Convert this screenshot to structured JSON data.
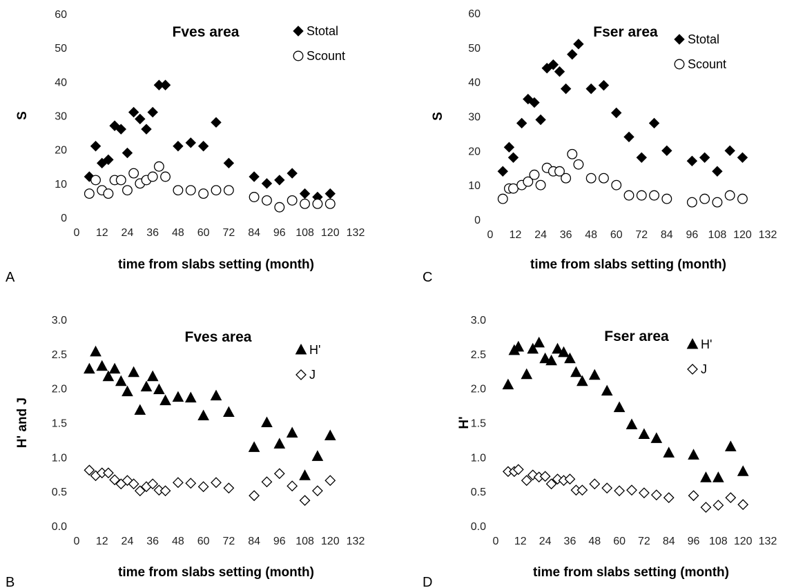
{
  "chart_data": [
    {
      "panel": "A",
      "type": "scatter",
      "title": "Fves area",
      "xlabel": "time from slabs setting (month)",
      "ylabel": "S",
      "xlim": [
        0,
        132
      ],
      "xticks": [
        0,
        12,
        24,
        36,
        48,
        60,
        72,
        84,
        96,
        108,
        120,
        132
      ],
      "ylim": [
        0,
        60
      ],
      "yticks": [
        0,
        10,
        20,
        30,
        40,
        50,
        60
      ],
      "ydecimals": 0,
      "legend_position": "top-right",
      "series": [
        {
          "name": "Stotal",
          "marker": "diamond-filled",
          "x": [
            6,
            9,
            12,
            15,
            18,
            21,
            24,
            27,
            30,
            33,
            36,
            39,
            42,
            48,
            54,
            60,
            66,
            72,
            84,
            90,
            96,
            102,
            108,
            114,
            120
          ],
          "y": [
            12,
            21,
            16,
            17,
            27,
            26,
            19,
            31,
            29,
            26,
            31,
            39,
            39,
            21,
            22,
            21,
            28,
            16,
            12,
            10,
            11,
            13,
            7,
            6,
            7
          ]
        },
        {
          "name": "Scount",
          "marker": "circle-open",
          "x": [
            6,
            9,
            12,
            15,
            18,
            21,
            24,
            27,
            30,
            33,
            36,
            39,
            42,
            48,
            54,
            60,
            66,
            72,
            84,
            90,
            96,
            102,
            108,
            114,
            120
          ],
          "y": [
            7,
            11,
            8,
            7,
            11,
            11,
            8,
            13,
            10,
            11,
            12,
            15,
            12,
            8,
            8,
            7,
            8,
            8,
            6,
            5,
            3,
            5,
            4,
            4,
            4
          ]
        }
      ]
    },
    {
      "panel": "C",
      "type": "scatter",
      "title": "Fser area",
      "xlabel": "time from slabs setting (month)",
      "ylabel": "S",
      "xlim": [
        0,
        132
      ],
      "xticks": [
        0,
        12,
        24,
        36,
        48,
        60,
        72,
        84,
        96,
        108,
        120,
        132
      ],
      "ylim": [
        0,
        60
      ],
      "yticks": [
        0,
        10,
        20,
        30,
        40,
        50,
        60
      ],
      "ydecimals": 0,
      "legend_position": "top-right",
      "series": [
        {
          "name": "Stotal",
          "marker": "diamond-filled",
          "x": [
            6,
            9,
            11,
            15,
            18,
            21,
            24,
            27,
            30,
            33,
            36,
            39,
            42,
            48,
            54,
            60,
            66,
            72,
            78,
            84,
            96,
            102,
            108,
            114,
            120
          ],
          "y": [
            14,
            21,
            18,
            28,
            35,
            34,
            29,
            44,
            45,
            43,
            38,
            48,
            51,
            38,
            39,
            31,
            24,
            18,
            28,
            20,
            17,
            18,
            14,
            20,
            18
          ]
        },
        {
          "name": "Scount",
          "marker": "circle-open",
          "x": [
            6,
            9,
            11,
            15,
            18,
            21,
            24,
            27,
            30,
            33,
            36,
            39,
            42,
            48,
            54,
            60,
            66,
            72,
            78,
            84,
            96,
            102,
            108,
            114,
            120
          ],
          "y": [
            6,
            9,
            9,
            10,
            11,
            13,
            10,
            15,
            14,
            14,
            12,
            19,
            16,
            12,
            12,
            10,
            7,
            7,
            7,
            6,
            5,
            6,
            5,
            7,
            6
          ]
        }
      ]
    },
    {
      "panel": "B",
      "type": "scatter",
      "title": "Fves area",
      "xlabel": "time from slabs setting (month)",
      "ylabel": "H' and J",
      "xlim": [
        0,
        132
      ],
      "xticks": [
        0,
        12,
        24,
        36,
        48,
        60,
        72,
        84,
        96,
        108,
        120,
        132
      ],
      "ylim": [
        0,
        3
      ],
      "yticks": [
        0,
        0.5,
        1,
        1.5,
        2,
        2.5,
        3
      ],
      "ydecimals": 1,
      "legend_position": "top-right",
      "series": [
        {
          "name": "H'",
          "marker": "triangle-filled",
          "x": [
            6,
            9,
            12,
            15,
            18,
            21,
            24,
            27,
            30,
            33,
            36,
            39,
            42,
            48,
            54,
            60,
            66,
            72,
            84,
            90,
            96,
            102,
            108,
            114,
            120
          ],
          "y": [
            2.28,
            2.53,
            2.32,
            2.17,
            2.28,
            2.1,
            1.95,
            2.23,
            1.68,
            2.02,
            2.17,
            1.98,
            1.82,
            1.87,
            1.86,
            1.6,
            1.89,
            1.65,
            1.14,
            1.5,
            1.19,
            1.35,
            0.73,
            1.01,
            1.31
          ]
        },
        {
          "name": "J",
          "marker": "diamond-open",
          "x": [
            6,
            9,
            12,
            15,
            18,
            21,
            24,
            27,
            30,
            33,
            36,
            39,
            42,
            48,
            54,
            60,
            66,
            72,
            84,
            90,
            96,
            102,
            108,
            114,
            120
          ],
          "y": [
            0.81,
            0.73,
            0.77,
            0.77,
            0.67,
            0.61,
            0.66,
            0.61,
            0.51,
            0.57,
            0.61,
            0.52,
            0.51,
            0.63,
            0.62,
            0.57,
            0.63,
            0.55,
            0.44,
            0.64,
            0.76,
            0.58,
            0.37,
            0.51,
            0.66
          ]
        }
      ]
    },
    {
      "panel": "D",
      "type": "scatter",
      "title": "Fser area",
      "xlabel": "time from slabs setting (month)",
      "ylabel": "H'",
      "xlim": [
        0,
        132
      ],
      "xticks": [
        0,
        12,
        24,
        36,
        48,
        60,
        72,
        84,
        96,
        108,
        120,
        132
      ],
      "ylim": [
        0,
        3
      ],
      "yticks": [
        0,
        0.5,
        1,
        1.5,
        2,
        2.5,
        3
      ],
      "ydecimals": 1,
      "legend_position": "top-right",
      "series": [
        {
          "name": "H'",
          "marker": "triangle-filled",
          "x": [
            6,
            9,
            11,
            15,
            18,
            21,
            24,
            27,
            30,
            33,
            36,
            39,
            42,
            48,
            54,
            60,
            66,
            72,
            78,
            84,
            96,
            102,
            108,
            114,
            120
          ],
          "y": [
            2.05,
            2.55,
            2.6,
            2.2,
            2.57,
            2.66,
            2.43,
            2.4,
            2.57,
            2.52,
            2.43,
            2.23,
            2.1,
            2.19,
            1.96,
            1.72,
            1.47,
            1.33,
            1.27,
            1.06,
            1.03,
            0.7,
            0.7,
            1.15,
            0.79
          ]
        },
        {
          "name": "J",
          "marker": "diamond-open",
          "x": [
            6,
            9,
            11,
            15,
            18,
            21,
            24,
            27,
            30,
            33,
            36,
            39,
            42,
            48,
            54,
            60,
            66,
            72,
            78,
            84,
            96,
            102,
            108,
            114,
            120
          ],
          "y": [
            0.79,
            0.79,
            0.82,
            0.66,
            0.74,
            0.71,
            0.72,
            0.61,
            0.68,
            0.66,
            0.68,
            0.52,
            0.52,
            0.61,
            0.55,
            0.51,
            0.52,
            0.48,
            0.45,
            0.41,
            0.44,
            0.27,
            0.3,
            0.41,
            0.31
          ]
        }
      ]
    }
  ]
}
